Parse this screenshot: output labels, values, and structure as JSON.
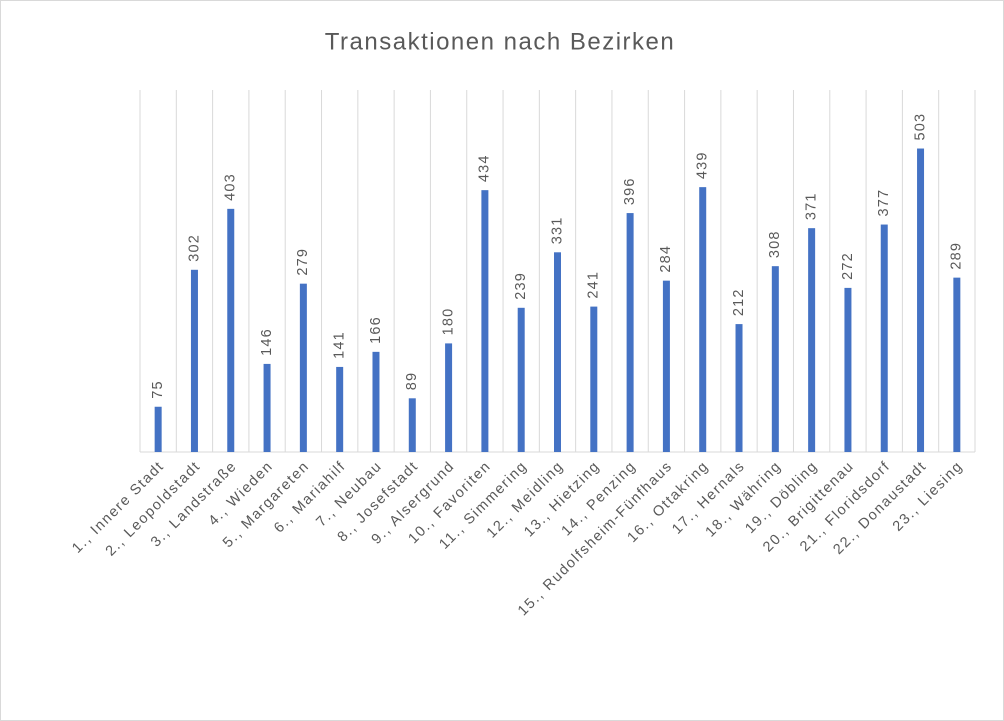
{
  "chart_data": {
    "type": "bar",
    "title": "Transaktionen nach Bezirken",
    "categories": [
      "1., Innere Stadt",
      "2., Leopoldstadt",
      "3., Landstraße",
      "4., Wieden",
      "5., Margareten",
      "6., Mariahilf",
      "7., Neubau",
      "8., Josefstadt",
      "9., Alsergrund",
      "10., Favoriten",
      "11., Simmering",
      "12., Meidling",
      "13., Hietzing",
      "14., Penzing",
      "15., Rudolfsheim-Fünfhaus",
      "16., Ottakring",
      "17., Hernals",
      "18., Währing",
      "19., Döbling",
      "20., Brigittenau",
      "21., Floridsdorf",
      "22., Donaustadt",
      "23., Liesing"
    ],
    "values": [
      75,
      302,
      403,
      146,
      279,
      141,
      166,
      89,
      180,
      434,
      239,
      331,
      241,
      396,
      284,
      439,
      212,
      308,
      371,
      272,
      377,
      503,
      289
    ],
    "color": "#4472c4",
    "ylim": [
      0,
      600
    ],
    "grid": true
  }
}
